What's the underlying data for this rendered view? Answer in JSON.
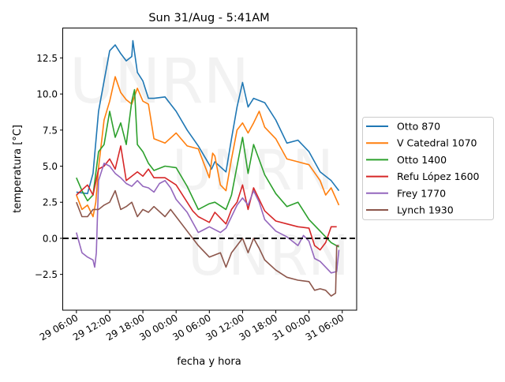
{
  "chart_data": {
    "type": "line",
    "title": "Sun 31/Aug - 5:41AM",
    "xlabel": "fecha y hora",
    "ylabel": "temperatura [°C]",
    "x_unit": "hours since 29 00:00",
    "xlim": [
      3.6,
      56.6
    ],
    "ylim": [
      -4.98,
      14.6
    ],
    "x_ticks": [
      {
        "value": 6,
        "label": "29 06:00"
      },
      {
        "value": 12,
        "label": "29 12:00"
      },
      {
        "value": 18,
        "label": "29 18:00"
      },
      {
        "value": 24,
        "label": "30 00:00"
      },
      {
        "value": 30,
        "label": "30 06:00"
      },
      {
        "value": 36,
        "label": "30 12:00"
      },
      {
        "value": 42,
        "label": "30 18:00"
      },
      {
        "value": 48,
        "label": "31 00:00"
      },
      {
        "value": 54,
        "label": "31 06:00"
      }
    ],
    "y_ticks": [
      {
        "value": -2.5,
        "label": "−2.5"
      },
      {
        "value": 0,
        "label": "0.0"
      },
      {
        "value": 2.5,
        "label": "2.5"
      },
      {
        "value": 5,
        "label": "5.0"
      },
      {
        "value": 7.5,
        "label": "7.5"
      },
      {
        "value": 10,
        "label": "10.0"
      },
      {
        "value": 12.5,
        "label": "12.5"
      }
    ],
    "reference_line": {
      "y": 0,
      "style": "dashed",
      "color": "#000000"
    },
    "grid": false,
    "legend_placement": "right-outside",
    "watermark": "UNRN",
    "series": [
      {
        "name": "Otto 870",
        "color": "#1f77b4",
        "x": [
          6,
          8,
          9,
          10,
          11,
          12,
          13,
          14,
          15,
          16,
          16.2,
          17,
          18,
          19,
          20,
          22,
          24,
          26,
          28,
          30,
          30.4,
          31,
          33,
          34,
          35,
          36,
          37,
          38,
          40,
          42,
          44,
          46,
          48,
          50,
          52,
          53.4
        ],
        "y": [
          3.2,
          3.1,
          4.5,
          8.8,
          10.9,
          13.0,
          13.4,
          12.8,
          12.3,
          12.6,
          13.7,
          11.5,
          10.9,
          9.7,
          9.7,
          9.8,
          8.8,
          7.5,
          6.4,
          5.1,
          4.8,
          5.3,
          4.6,
          6.9,
          9.1,
          10.8,
          9.1,
          9.7,
          9.4,
          8.2,
          6.6,
          6.8,
          6.0,
          4.6,
          4.0,
          3.3
        ]
      },
      {
        "name": "V Catedral 1070",
        "color": "#ff7f0e",
        "x": [
          6,
          7,
          8,
          9,
          9.5,
          10,
          11,
          12,
          13,
          14,
          15,
          16,
          17,
          18,
          19,
          20,
          22,
          24,
          26,
          28,
          30,
          30.6,
          31,
          32,
          33,
          34,
          35,
          36,
          37,
          38,
          39,
          40,
          42,
          44,
          46,
          48,
          50,
          51,
          52,
          53.4
        ],
        "y": [
          3.0,
          2.0,
          2.3,
          1.5,
          2.5,
          4.9,
          8.2,
          9.5,
          11.2,
          10.1,
          9.6,
          9.3,
          10.4,
          9.5,
          9.3,
          6.9,
          6.6,
          7.3,
          6.4,
          6.2,
          4.2,
          5.9,
          5.7,
          3.7,
          3.3,
          5.5,
          7.5,
          8.0,
          7.3,
          8.0,
          8.8,
          7.7,
          6.9,
          5.5,
          5.3,
          5.1,
          4.0,
          3.0,
          3.5,
          2.3
        ]
      },
      {
        "name": "Otto 1400",
        "color": "#2ca02c",
        "x": [
          6,
          7,
          8,
          9,
          10,
          11,
          12,
          13,
          14,
          15,
          16,
          16.5,
          17,
          18,
          19,
          20,
          22,
          24,
          26,
          28,
          30,
          31,
          33,
          34,
          35,
          36,
          37,
          38,
          40,
          42,
          44,
          46,
          48,
          50,
          52,
          53.4
        ],
        "y": [
          4.2,
          3.3,
          2.6,
          3.0,
          6.0,
          6.5,
          8.8,
          7.0,
          8.0,
          6.5,
          9.5,
          10.3,
          6.5,
          6.0,
          5.2,
          4.7,
          5.0,
          4.9,
          3.6,
          2.0,
          2.4,
          2.5,
          2.0,
          3.0,
          5.0,
          7.0,
          4.5,
          6.5,
          4.4,
          3.1,
          2.2,
          2.5,
          1.3,
          0.5,
          -0.3,
          -0.6
        ]
      },
      {
        "name": "Refu López 1600",
        "color": "#d62728",
        "x": [
          6,
          8,
          9,
          10,
          11,
          12,
          13,
          14,
          15,
          16,
          17,
          18,
          19,
          20,
          22,
          24,
          26,
          27,
          28,
          30,
          31,
          33,
          34,
          35,
          36,
          37,
          38,
          40,
          42,
          44,
          46,
          48,
          49,
          50,
          51,
          52,
          53
        ],
        "y": [
          3.0,
          3.7,
          3.0,
          4.8,
          5.0,
          5.5,
          4.8,
          6.4,
          4.0,
          4.3,
          4.6,
          4.3,
          4.8,
          4.2,
          4.2,
          3.7,
          2.5,
          1.9,
          1.5,
          1.1,
          1.8,
          1.0,
          2.0,
          2.5,
          3.7,
          2.0,
          3.5,
          1.9,
          1.2,
          1.0,
          0.8,
          0.7,
          -0.5,
          -0.8,
          -0.3,
          0.8,
          0.8
        ]
      },
      {
        "name": "Frey 1770",
        "color": "#9467bd",
        "x": [
          6,
          7,
          8,
          9,
          9.3,
          9.6,
          10,
          11,
          12,
          13,
          14,
          15,
          16,
          17,
          18,
          19,
          20,
          21,
          22,
          23,
          24,
          26,
          28,
          29,
          30,
          32,
          33,
          34,
          35,
          36,
          37,
          38,
          39,
          40,
          42,
          44,
          46,
          47,
          48,
          49,
          50,
          52,
          53,
          53.4
        ],
        "y": [
          0.4,
          -1.0,
          -1.3,
          -1.5,
          -2.0,
          -1.0,
          4.0,
          5.2,
          5.0,
          4.5,
          4.2,
          3.8,
          3.6,
          4.0,
          3.6,
          3.5,
          3.2,
          3.8,
          4.0,
          3.5,
          2.7,
          1.8,
          0.4,
          0.6,
          0.8,
          0.4,
          0.7,
          1.5,
          2.3,
          2.8,
          2.3,
          3.3,
          2.5,
          1.3,
          0.5,
          0.1,
          -0.5,
          0.2,
          -0.2,
          -1.4,
          -1.6,
          -2.4,
          -2.3,
          -0.8
        ]
      },
      {
        "name": "Lynch 1930",
        "color": "#8c564b",
        "x": [
          6,
          7,
          8,
          9,
          10,
          11,
          12,
          13,
          14,
          15,
          16,
          17,
          18,
          19,
          20,
          22,
          23,
          24,
          26,
          28,
          30,
          32,
          33,
          34,
          35,
          36,
          37,
          38,
          39,
          40,
          42,
          44,
          46,
          48,
          49,
          50,
          51,
          52,
          52.8,
          53,
          53.4
        ],
        "y": [
          2.5,
          1.5,
          1.5,
          2.0,
          2.0,
          2.3,
          2.5,
          3.3,
          2.0,
          2.2,
          2.5,
          1.5,
          2.0,
          1.8,
          2.2,
          1.5,
          2.0,
          1.5,
          0.5,
          -0.5,
          -1.3,
          -1.0,
          -2.0,
          -1.0,
          -0.5,
          0.0,
          -1.0,
          0.0,
          -0.7,
          -1.5,
          -2.2,
          -2.7,
          -2.9,
          -3.0,
          -3.6,
          -3.5,
          -3.6,
          -4.0,
          -3.8,
          -0.5,
          -0.5
        ]
      }
    ]
  }
}
